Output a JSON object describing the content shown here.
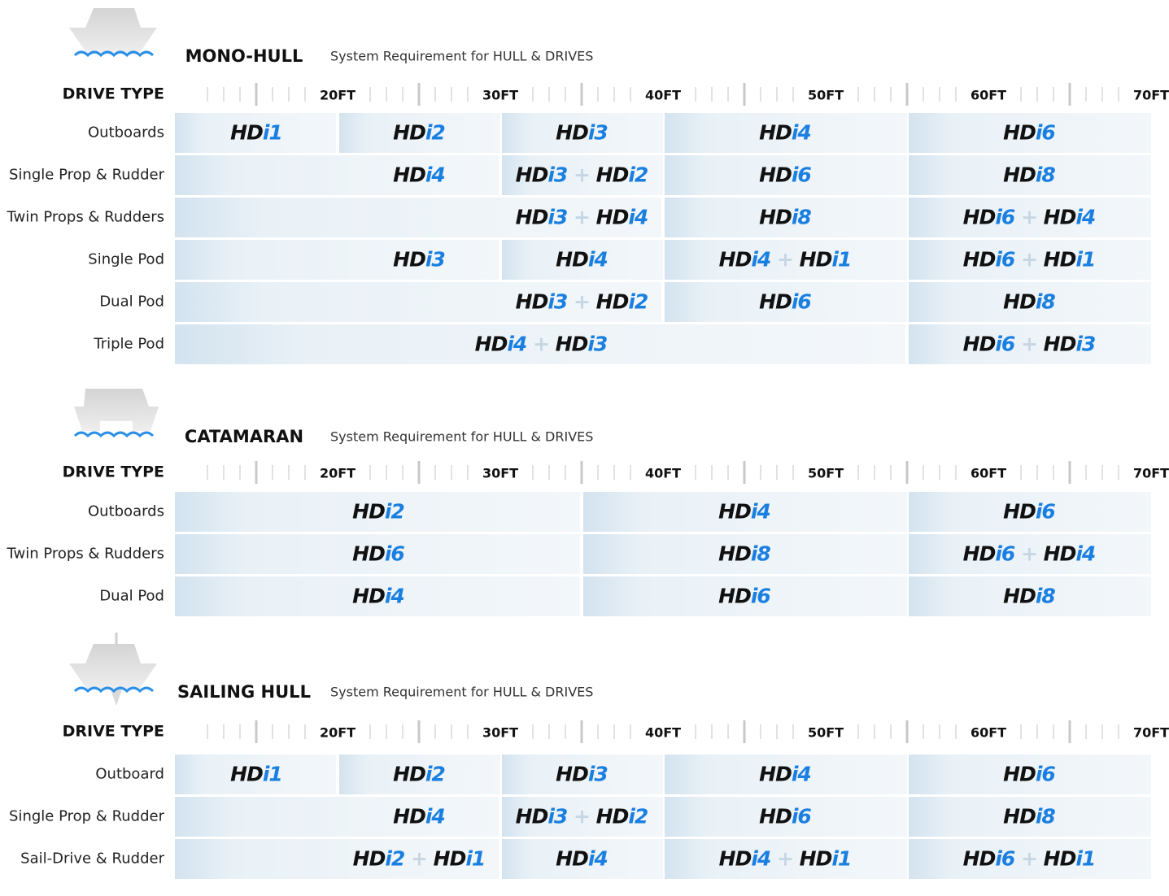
{
  "sections": [
    {
      "title": "MONO-HULL",
      "subtitle": "System Requirement for HULL & DRIVES",
      "header": "DRIVE TYPE",
      "ruler": [
        "20FT",
        "30FT",
        "40FT",
        "50FT",
        "60FT",
        "70FT"
      ],
      "rows": [
        {
          "label": "Outboards",
          "cells": [
            "HDi1",
            "HDi2",
            "HDi3",
            "HDi4",
            "HDi6"
          ]
        },
        {
          "label": "Single Prop & Rudder",
          "cells": [
            "HDi4",
            "HDi3 + HDi2",
            "HDi6",
            "HDi8"
          ]
        },
        {
          "label": "Twin Props & Rudders",
          "cells": [
            "HDi3 + HDi4",
            "HDi8",
            "HDi6 + HDi4"
          ]
        },
        {
          "label": "Single Pod",
          "cells": [
            "HDi3",
            "HDi4",
            "HDi4 + HDi1",
            "HDi6 + HDi1"
          ]
        },
        {
          "label": "Dual Pod",
          "cells": [
            "HDi3 + HDi2",
            "HDi6",
            "HDi8"
          ]
        },
        {
          "label": "Triple Pod",
          "cells": [
            "HDi4 + HDi3",
            "HDi6 + HDi3"
          ]
        }
      ]
    },
    {
      "title": "CATAMARAN",
      "subtitle": "System Requirement for HULL & DRIVES",
      "header": "DRIVE TYPE",
      "ruler": [
        "20FT",
        "30FT",
        "40FT",
        "50FT",
        "60FT",
        "70FT"
      ],
      "rows": [
        {
          "label": "Outboards",
          "cells": [
            "HDi2",
            "HDi4",
            "HDi6"
          ]
        },
        {
          "label": "Twin Props & Rudders",
          "cells": [
            "HDi6",
            "HDi8",
            "HDi6 + HDi4"
          ]
        },
        {
          "label": "Dual Pod",
          "cells": [
            "HDi4",
            "HDi6",
            "HDi8"
          ]
        }
      ]
    },
    {
      "title": "SAILING HULL",
      "subtitle": "System Requirement for HULL & DRIVES",
      "header": "DRIVE TYPE",
      "ruler": [
        "20FT",
        "30FT",
        "40FT",
        "50FT",
        "60FT",
        "70FT"
      ],
      "rows": [
        {
          "label": "Outboard",
          "cells": [
            "HDi1",
            "HDi2",
            "HDi3",
            "HDi4",
            "HDi6"
          ]
        },
        {
          "label": "Single Prop & Rudder",
          "cells": [
            "HDi4",
            "HDi3 + HDi2",
            "HDi6",
            "HDi8"
          ]
        },
        {
          "label": "Sail-Drive & Rudder",
          "cells": [
            "HDi2 + HDi1",
            "HDi4",
            "HDi4 + HDi1",
            "HDi6 + HDi1"
          ]
        }
      ]
    }
  ]
}
